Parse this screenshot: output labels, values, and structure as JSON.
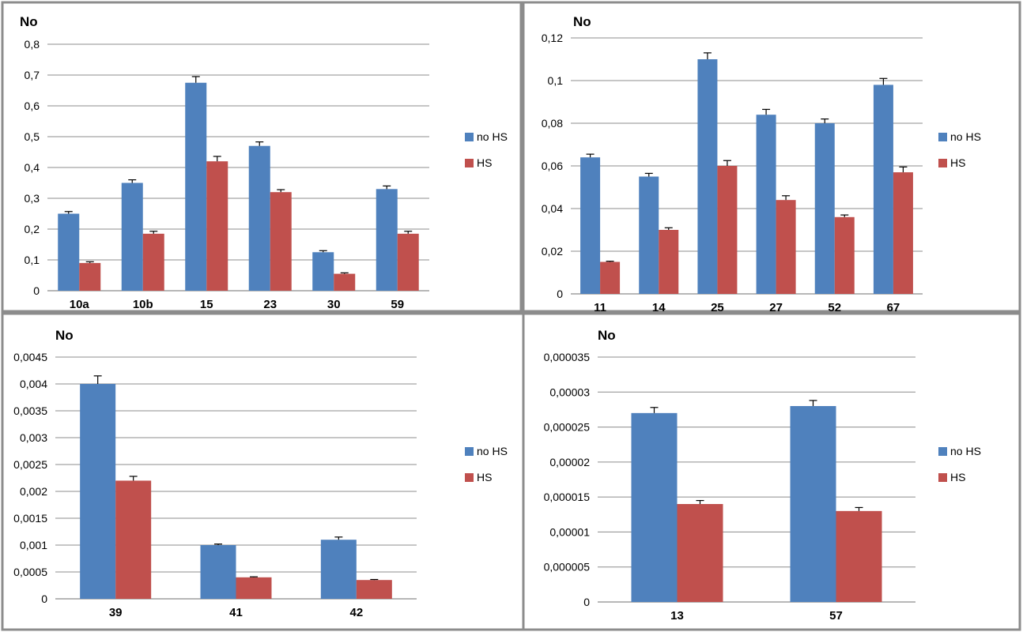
{
  "chart_data": [
    {
      "type": "bar",
      "ylabel": "No",
      "categories": [
        "10a",
        "10b",
        "15",
        "23",
        "30",
        "59"
      ],
      "series": [
        {
          "name": "no HS",
          "values": [
            0.25,
            0.35,
            0.675,
            0.47,
            0.125,
            0.33
          ],
          "errors": [
            0.007,
            0.01,
            0.02,
            0.013,
            0.005,
            0.01
          ]
        },
        {
          "name": "HS",
          "values": [
            0.09,
            0.185,
            0.42,
            0.32,
            0.055,
            0.185
          ],
          "errors": [
            0.004,
            0.008,
            0.016,
            0.008,
            0.003,
            0.008
          ]
        }
      ],
      "ylim": [
        0,
        0.8
      ],
      "yticks": [
        0,
        0.1,
        0.2,
        0.3,
        0.4,
        0.5,
        0.6,
        0.7,
        0.8
      ],
      "ytick_labels": [
        "0",
        "0,1",
        "0,2",
        "0,3",
        "0,4",
        "0,5",
        "0,6",
        "0,7",
        "0,8"
      ],
      "grid": true,
      "legend": "right"
    },
    {
      "type": "bar",
      "ylabel": "No",
      "categories": [
        "11",
        "14",
        "25",
        "27",
        "52",
        "67"
      ],
      "series": [
        {
          "name": "no HS",
          "values": [
            0.064,
            0.055,
            0.11,
            0.084,
            0.08,
            0.098
          ],
          "errors": [
            0.0015,
            0.0015,
            0.003,
            0.0025,
            0.002,
            0.003
          ]
        },
        {
          "name": "HS",
          "values": [
            0.015,
            0.03,
            0.06,
            0.044,
            0.036,
            0.057
          ],
          "errors": [
            0.0003,
            0.001,
            0.0025,
            0.002,
            0.001,
            0.0025
          ]
        }
      ],
      "ylim": [
        0,
        0.12
      ],
      "yticks": [
        0,
        0.02,
        0.04,
        0.06,
        0.08,
        0.1,
        0.12
      ],
      "ytick_labels": [
        "0",
        "0,02",
        "0,04",
        "0,06",
        "0,08",
        "0,1",
        "0,12"
      ],
      "grid": true,
      "legend": "right"
    },
    {
      "type": "bar",
      "ylabel": "No",
      "categories": [
        "39",
        "41",
        "42"
      ],
      "series": [
        {
          "name": "no HS",
          "values": [
            0.004,
            0.001,
            0.0011
          ],
          "errors": [
            0.00015,
            2e-05,
            5e-05
          ]
        },
        {
          "name": "HS",
          "values": [
            0.0022,
            0.0004,
            0.00035
          ],
          "errors": [
            8e-05,
            1e-05,
            1e-05
          ]
        }
      ],
      "ylim": [
        0,
        0.0045
      ],
      "yticks": [
        0,
        0.0005,
        0.001,
        0.0015,
        0.002,
        0.0025,
        0.003,
        0.0035,
        0.004,
        0.0045
      ],
      "ytick_labels": [
        "0",
        "0,0005",
        "0,001",
        "0,0015",
        "0,002",
        "0,0025",
        "0,003",
        "0,0035",
        "0,004",
        "0,0045"
      ],
      "grid": true,
      "legend": "right"
    },
    {
      "type": "bar",
      "ylabel": "No",
      "categories": [
        "13",
        "57"
      ],
      "series": [
        {
          "name": "no HS",
          "values": [
            2.7e-05,
            2.8e-05
          ],
          "errors": [
            8e-07,
            8e-07
          ]
        },
        {
          "name": "HS",
          "values": [
            1.4e-05,
            1.3e-05
          ],
          "errors": [
            5e-07,
            5e-07
          ]
        }
      ],
      "ylim": [
        0,
        3.5e-05
      ],
      "yticks": [
        0,
        5e-06,
        1e-05,
        1.5e-05,
        2e-05,
        2.5e-05,
        3e-05,
        3.5e-05
      ],
      "ytick_labels": [
        "0",
        "0,000005",
        "0,00001",
        "0,000015",
        "0,00002",
        "0,000025",
        "0,00003",
        "0,000035"
      ],
      "grid": true,
      "legend": "right"
    }
  ],
  "colors": {
    "no_hs": "#4f81bd",
    "hs": "#c0504d",
    "grid": "#8c8c8c",
    "panel_border": "#8c8c8c"
  }
}
